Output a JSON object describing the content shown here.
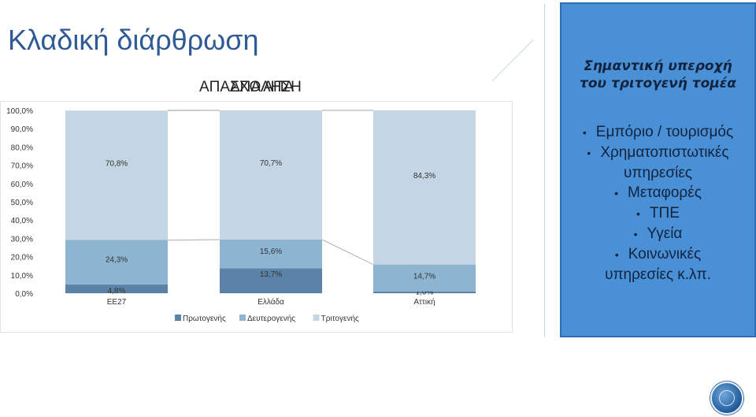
{
  "slide": {
    "title": "Κλαδική διάρθρωση",
    "overlap_label_1": "ΑΠΑΣΧΟΛΗΣΗ",
    "overlap_label_2": "ΑΠΑ ΑΠΑ"
  },
  "panel": {
    "heading_line1": "Σημαντική υπεροχή",
    "heading_line2": "του τριτογενή τομέα",
    "items": [
      "Εμπόριο / τουρισμός",
      "Χρηματοπιστωτικές",
      "υπηρεσίες",
      "Μεταφορές",
      "ΤΠΕ",
      "Υγεία",
      "Κοινωνικές",
      "υπηρεσίες κ.λπ."
    ],
    "bullet_flags": [
      true,
      true,
      false,
      true,
      true,
      true,
      true,
      false
    ]
  },
  "chart_data": {
    "type": "bar",
    "stacked": true,
    "categories": [
      "ΕΕ27",
      "Ελλάδα",
      "Αττική"
    ],
    "series": [
      {
        "name": "Πρωτογενής",
        "values": [
          4.8,
          13.7,
          1.0
        ],
        "labels": [
          "4,8%",
          "13,7%",
          "1,0%"
        ],
        "color": "#5b83a8"
      },
      {
        "name": "Δευτερογενής",
        "values": [
          24.3,
          15.6,
          14.7
        ],
        "labels": [
          "24,3%",
          "15,6%",
          "14,7%"
        ],
        "color": "#8db5d1"
      },
      {
        "name": "Τριτογενής",
        "values": [
          70.8,
          70.7,
          84.3
        ],
        "labels": [
          "70,8%",
          "70,7%",
          "84,3%"
        ],
        "color": "#c4d5e4"
      }
    ],
    "yticks": [
      "0,0%",
      "10,0%",
      "20,0%",
      "30,0%",
      "40,0%",
      "50,0%",
      "60,0%",
      "70,0%",
      "80,0%",
      "90,0%",
      "100,0%"
    ],
    "ylim": [
      0,
      100
    ],
    "legend_position": "bottom",
    "grid": false
  }
}
